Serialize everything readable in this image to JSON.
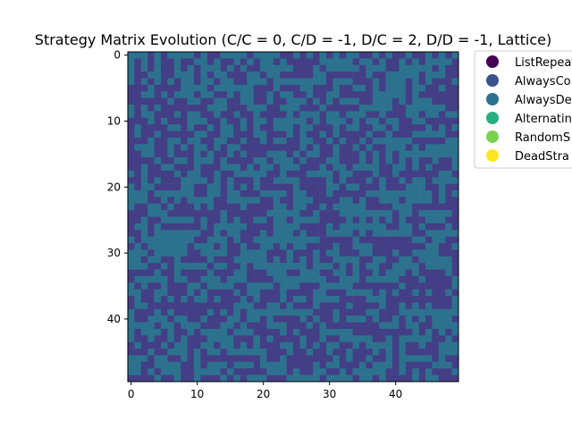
{
  "chart_data": {
    "type": "heatmap",
    "title": "Strategy Matrix Evolution (C/C = 0, C/D = -1, D/C = 2, D/D = -1, Lattice)",
    "xlabel": "",
    "ylabel": "",
    "grid": false,
    "x_ticks": [
      0,
      10,
      20,
      30,
      40
    ],
    "y_ticks": [
      0,
      10,
      20,
      30,
      40
    ],
    "xlim": [
      -0.5,
      49.5
    ],
    "ylim": [
      49.5,
      -0.5
    ],
    "n_rows": 50,
    "n_cols": 50,
    "legend_placement": "upper-right-outside",
    "legend": [
      {
        "label": "ListRepeat",
        "color": "#440154"
      },
      {
        "label": "AlwaysCo",
        "color": "#3b528b"
      },
      {
        "label": "AlwaysDe",
        "color": "#2c728e"
      },
      {
        "label": "Alternatin",
        "color": "#28ae80"
      },
      {
        "label": "RandomS",
        "color": "#7ad151"
      },
      {
        "label": "DeadStra",
        "color": "#fde725"
      }
    ],
    "cell_colors": [
      "#433e85",
      "#2c728e"
    ],
    "cells_note_seed": 20240607
  }
}
